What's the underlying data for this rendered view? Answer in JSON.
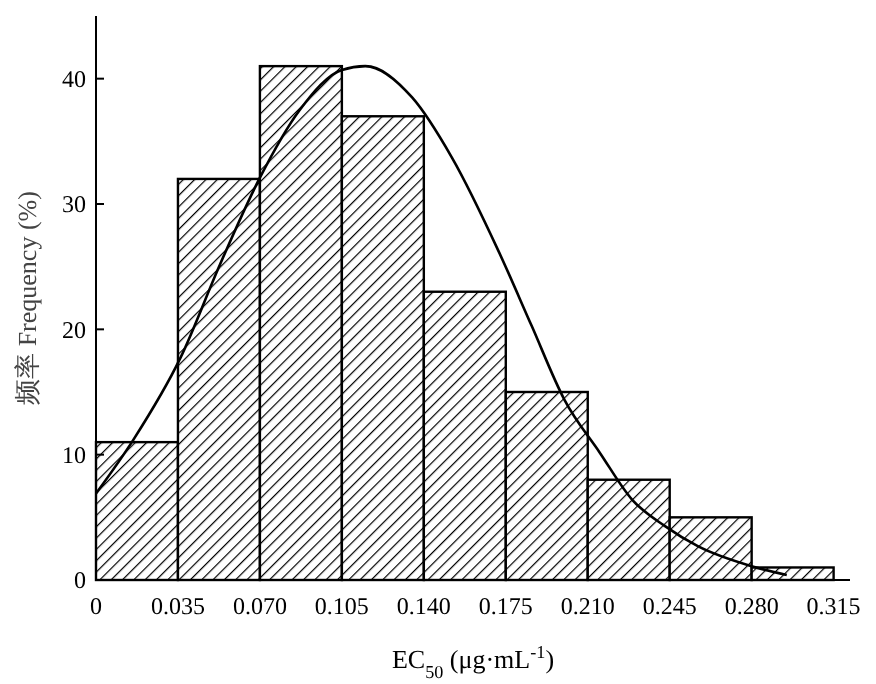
{
  "chart_data": {
    "type": "histogram",
    "xlabel": "EC$_{50}$ (μg·mL$^{-1}$)",
    "ylabel": "频率 Frequency (%)",
    "bins": [
      0,
      0.035,
      0.07,
      0.105,
      0.14,
      0.175,
      0.21,
      0.245,
      0.28,
      0.315
    ],
    "xlim": [
      0,
      0.322
    ],
    "ylim": [
      0,
      45
    ],
    "xticks": [
      0,
      0.035,
      {
        "value": 0.07,
        "label": "0.070"
      },
      0.105,
      {
        "value": 0.14,
        "label": "0.140"
      },
      0.175,
      {
        "value": 0.21,
        "label": "0.210"
      },
      0.245,
      {
        "value": 0.28,
        "label": "0.280"
      },
      0.315
    ],
    "yticks": [
      0,
      10,
      20,
      30,
      40
    ],
    "series": [
      {
        "color": "#000000",
        "values": [
          11,
          32,
          41,
          37,
          23,
          15,
          8,
          5,
          1
        ]
      },
      {
        "type": "line",
        "color": "#000000",
        "x": [
          0,
          0.016,
          0.036,
          0.053,
          0.07,
          0.087,
          0.105,
          0.115,
          0.135,
          0.152,
          0.172,
          0.186,
          0.2,
          0.215,
          0.229,
          0.243,
          0.257,
          0.28,
          0.295
        ],
        "values": [
          6.9,
          11.2,
          17.7,
          25.2,
          32.1,
          37.5,
          40.7,
          41,
          38.5,
          33.7,
          26.2,
          20.3,
          14.4,
          10.2,
          6.4,
          4.3,
          2.7,
          1.1,
          0.4
        ]
      }
    ]
  }
}
